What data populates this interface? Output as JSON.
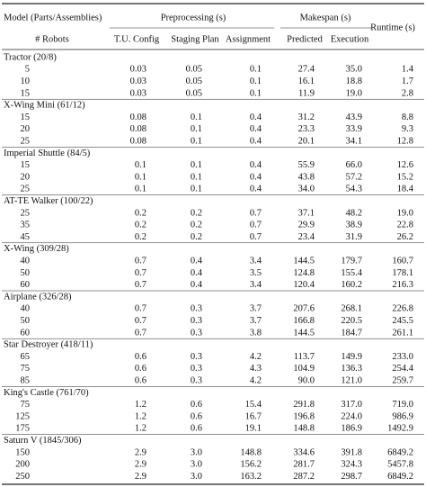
{
  "table": {
    "header": {
      "model": "Model (Parts/Assemblies)",
      "robots": "# Robots",
      "preprocessing": "Preprocessing (s)",
      "makespan": "Makespan (s)",
      "runtime": "Runtime (s)",
      "tu_config": "T.U. Config",
      "staging_plan": "Staging Plan",
      "assignment": "Assignment",
      "predicted": "Predicted",
      "execution": "Execution"
    },
    "groups": [
      {
        "name": "Tractor (20/8)",
        "rows": [
          [
            "5",
            "0.03",
            "0.05",
            "0.1",
            "27.4",
            "35.0",
            "1.4"
          ],
          [
            "10",
            "0.03",
            "0.05",
            "0.1",
            "16.1",
            "18.8",
            "1.7"
          ],
          [
            "15",
            "0.03",
            "0.05",
            "0.1",
            "11.9",
            "19.0",
            "2.8"
          ]
        ]
      },
      {
        "name": "X-Wing Mini (61/12)",
        "rows": [
          [
            "15",
            "0.08",
            "0.1",
            "0.4",
            "31.2",
            "43.9",
            "8.8"
          ],
          [
            "20",
            "0.08",
            "0.1",
            "0.4",
            "23.3",
            "33.9",
            "9.3"
          ],
          [
            "25",
            "0.08",
            "0.1",
            "0.4",
            "20.1",
            "34.1",
            "12.8"
          ]
        ]
      },
      {
        "name": "Imperial Shuttle (84/5)",
        "rows": [
          [
            "15",
            "0.1",
            "0.1",
            "0.4",
            "55.9",
            "66.0",
            "12.6"
          ],
          [
            "20",
            "0.1",
            "0.1",
            "0.4",
            "43.8",
            "57.2",
            "15.2"
          ],
          [
            "25",
            "0.1",
            "0.1",
            "0.4",
            "34.0",
            "54.3",
            "18.4"
          ]
        ]
      },
      {
        "name": "AT-TE Walker (100/22)",
        "rows": [
          [
            "25",
            "0.2",
            "0.2",
            "0.7",
            "37.1",
            "48.2",
            "19.0"
          ],
          [
            "35",
            "0.2",
            "0.2",
            "0.7",
            "29.9",
            "38.9",
            "22.8"
          ],
          [
            "45",
            "0.2",
            "0.2",
            "0.7",
            "23.4",
            "31.9",
            "26.2"
          ]
        ]
      },
      {
        "name": "X-Wing (309/28)",
        "rows": [
          [
            "40",
            "0.7",
            "0.4",
            "3.4",
            "144.5",
            "179.7",
            "160.7"
          ],
          [
            "50",
            "0.7",
            "0.4",
            "3.5",
            "124.8",
            "155.4",
            "178.1"
          ],
          [
            "60",
            "0.7",
            "0.4",
            "3.4",
            "120.4",
            "160.2",
            "216.3"
          ]
        ]
      },
      {
        "name": "Airplane (326/28)",
        "rows": [
          [
            "40",
            "0.7",
            "0.3",
            "3.7",
            "207.6",
            "268.1",
            "226.8"
          ],
          [
            "50",
            "0.7",
            "0.3",
            "3.7",
            "166.8",
            "220.5",
            "245.5"
          ],
          [
            "60",
            "0.7",
            "0.3",
            "3.8",
            "144.5",
            "184.7",
            "261.1"
          ]
        ]
      },
      {
        "name": "Star Destroyer (418/11)",
        "rows": [
          [
            "65",
            "0.6",
            "0.3",
            "4.2",
            "113.7",
            "149.9",
            "233.0"
          ],
          [
            "75",
            "0.6",
            "0.3",
            "4.3",
            "104.9",
            "136.3",
            "254.4"
          ],
          [
            "85",
            "0.6",
            "0.3",
            "4.2",
            "90.0",
            "121.0",
            "259.7"
          ]
        ]
      },
      {
        "name": "King's Castle (761/70)",
        "rows": [
          [
            "75",
            "1.2",
            "0.6",
            "15.4",
            "291.8",
            "317.0",
            "719.0"
          ],
          [
            "125",
            "1.2",
            "0.6",
            "16.7",
            "196.8",
            "224.0",
            "986.9"
          ],
          [
            "175",
            "1.2",
            "0.6",
            "19.1",
            "148.8",
            "186.9",
            "1492.9"
          ]
        ]
      },
      {
        "name": "Saturn V (1845/306)",
        "rows": [
          [
            "150",
            "2.9",
            "3.0",
            "148.8",
            "334.6",
            "391.8",
            "6849.2"
          ],
          [
            "200",
            "2.9",
            "3.0",
            "156.2",
            "281.7",
            "324.3",
            "5457.8"
          ],
          [
            "250",
            "2.9",
            "3.0",
            "163.2",
            "287.2",
            "298.7",
            "6849.2"
          ]
        ]
      }
    ]
  }
}
